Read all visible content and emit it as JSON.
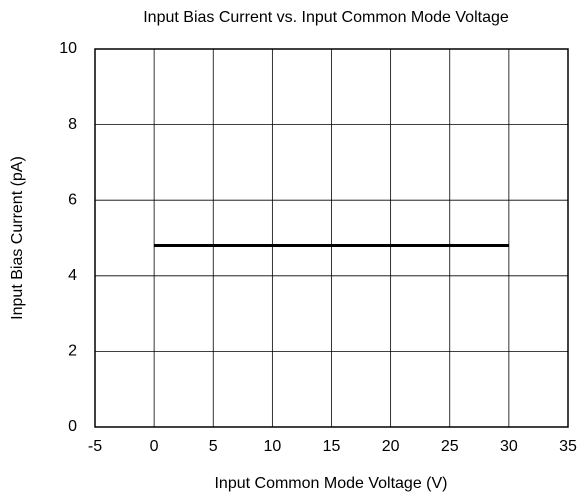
{
  "chart_data": {
    "type": "line",
    "title": "Input Bias Current vs. Input Common Mode Voltage",
    "x_label": "Input Common Mode Voltage (V)",
    "y_label": "Input Bias Current (pA)",
    "x": [
      0,
      30
    ],
    "series": [
      {
        "color": "#000000",
        "values": [
          4.8,
          4.8
        ]
      }
    ],
    "xlim": [
      -5,
      35
    ],
    "xticks": [
      -5,
      0,
      5,
      10,
      15,
      20,
      25,
      30,
      35
    ],
    "ylim": [
      0,
      10
    ],
    "yticks": [
      0,
      2,
      4,
      6,
      8,
      10
    ],
    "grid": true
  }
}
